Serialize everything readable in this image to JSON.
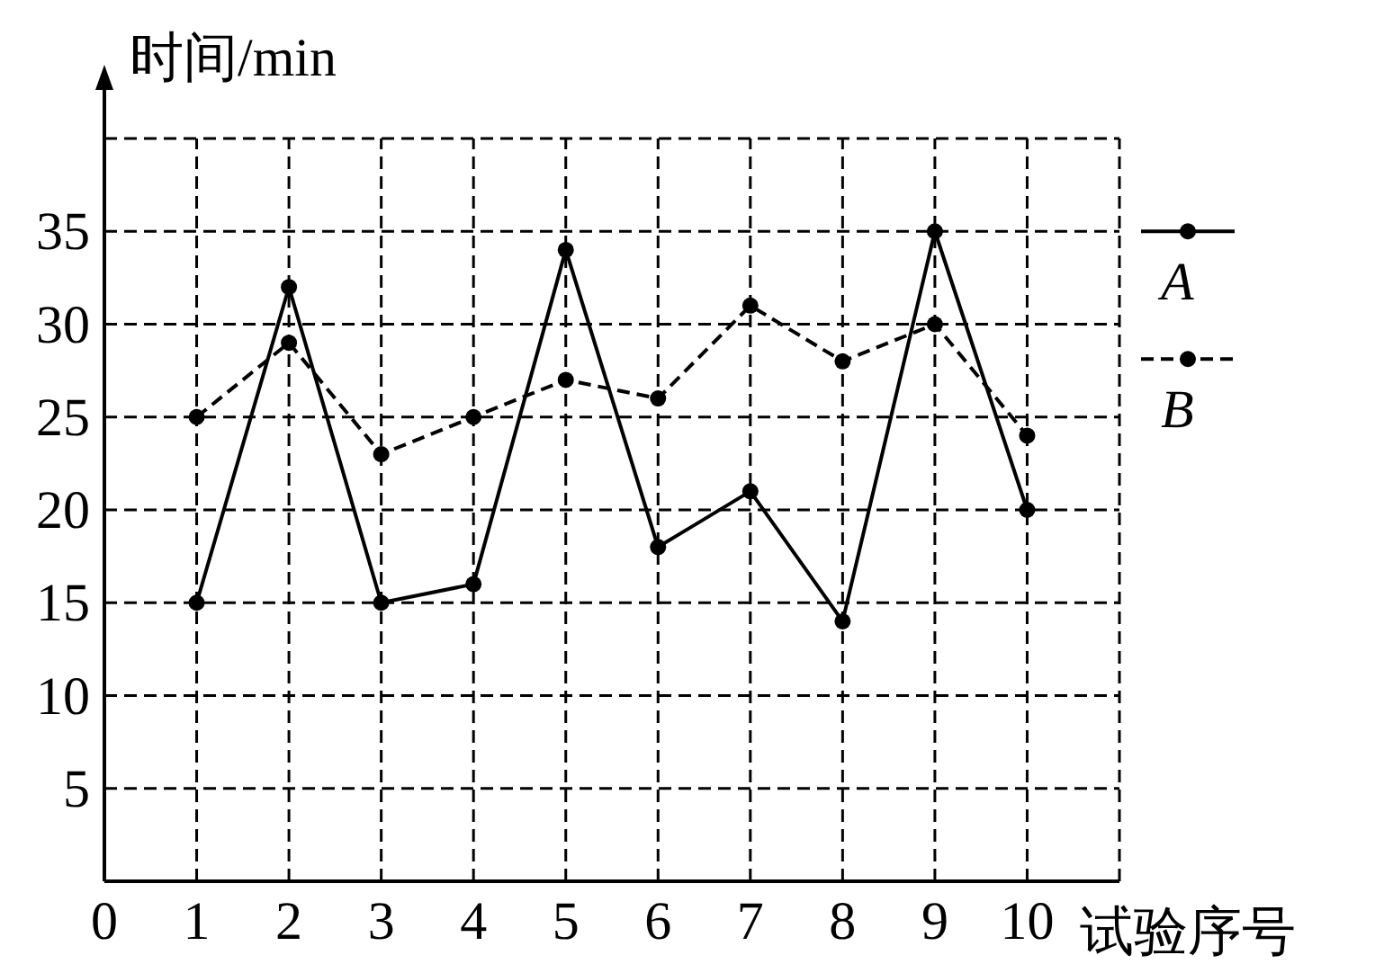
{
  "chart_data": {
    "type": "line",
    "xlabel": "试验序号",
    "ylabel": "时间/min",
    "x": [
      1,
      2,
      3,
      4,
      5,
      6,
      7,
      8,
      9,
      10
    ],
    "xlim": [
      0,
      11
    ],
    "xticks": [
      0,
      1,
      2,
      3,
      4,
      5,
      6,
      7,
      8,
      9,
      10,
      {
        "value": 11,
        "label": null
      }
    ],
    "ylim": [
      0,
      40
    ],
    "yticks": [
      5,
      10,
      15,
      20,
      25,
      30,
      35,
      {
        "value": 40,
        "label": null
      }
    ],
    "grid": true,
    "legend": "right",
    "marker": "circle",
    "series": [
      {
        "name": "A",
        "color": "#000000",
        "line_style": "solid",
        "values": [
          15,
          32,
          15,
          16,
          34,
          18,
          21,
          14,
          35,
          20
        ]
      },
      {
        "name": "B",
        "color": "#000000",
        "line_style": "dashed",
        "values": [
          25,
          29,
          23,
          25,
          27,
          26,
          31,
          28,
          30,
          24
        ]
      }
    ]
  }
}
